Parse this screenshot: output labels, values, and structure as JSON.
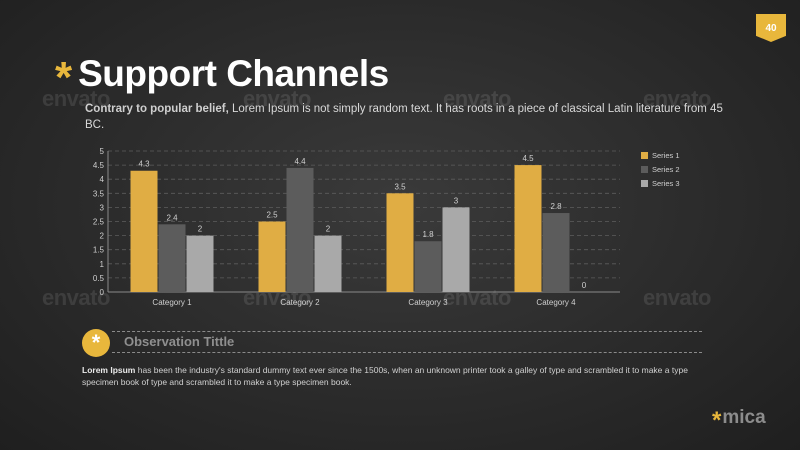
{
  "slide": {
    "page_number": "40",
    "title": "Support Channels",
    "title_marker": "*",
    "subtitle_lead": "Contrary to popular belief,",
    "subtitle_rest": " Lorem Ipsum is not simply random text. It has roots in a piece of classical Latin literature from 45 BC."
  },
  "observation": {
    "icon_glyph": "*",
    "title": "Observation Tittle",
    "body_lead": "Lorem Ipsum",
    "body_rest": " has been the industry's standard dummy text ever since the 1500s, when an unknown printer took a galley of type and scrambled it to make a type specimen book of type and scrambled it to make a type specimen book."
  },
  "logo": {
    "star": "*",
    "text": "mica"
  },
  "watermark": {
    "text": "envato"
  },
  "colors": {
    "accent": "#e8b73c",
    "series1": "#e0ad44",
    "series2": "#5c5c5c",
    "series3": "#a9a9a9"
  },
  "chart_data": {
    "type": "bar",
    "categories": [
      "Category 1",
      "Category 2",
      "Category 3",
      "Category 4"
    ],
    "series": [
      {
        "name": "Series 1",
        "values": [
          4.3,
          2.5,
          3.5,
          4.5
        ]
      },
      {
        "name": "Series 2",
        "values": [
          2.4,
          4.4,
          1.8,
          2.8
        ]
      },
      {
        "name": "Series 3",
        "values": [
          2,
          2,
          3,
          0
        ]
      }
    ],
    "data_labels": [
      [
        "4.3",
        "2.5",
        "3.5",
        "4.5"
      ],
      [
        "2.4",
        "4.4",
        "1.8",
        "2.8"
      ],
      [
        "2",
        "2",
        "3",
        "0"
      ]
    ],
    "yticks": [
      "0",
      "0.5",
      "1",
      "1.5",
      "2",
      "2.5",
      "3",
      "3.5",
      "4",
      "4.5",
      "5"
    ],
    "ylim": [
      0,
      5
    ],
    "grid": "dashed horizontal",
    "legend": "right"
  }
}
